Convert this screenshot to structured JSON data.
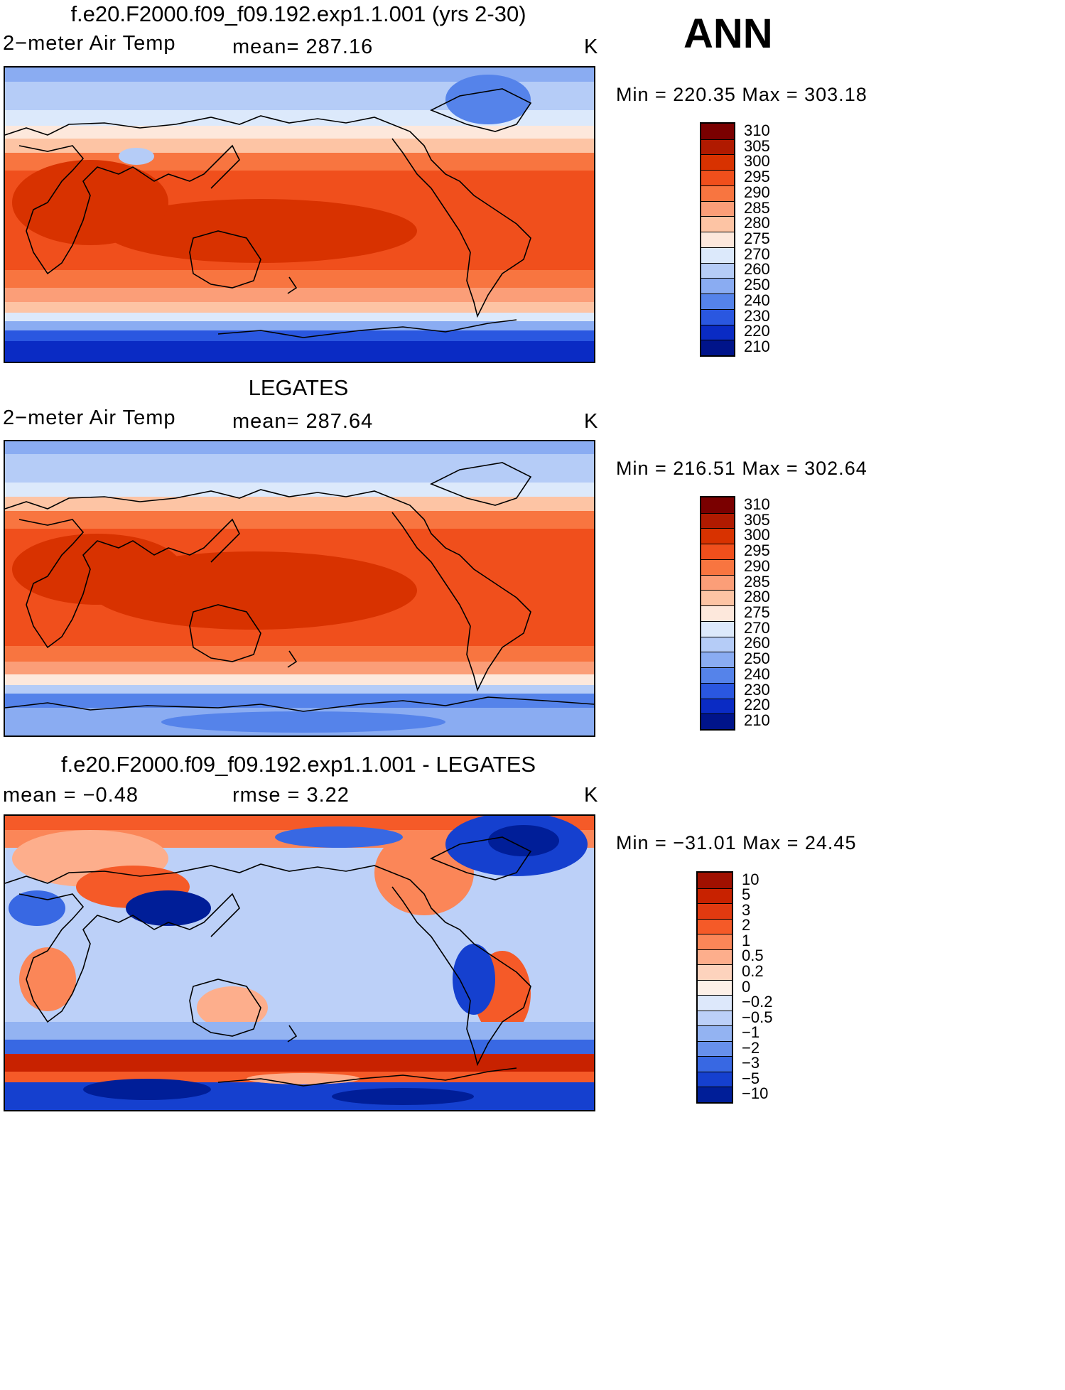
{
  "season": "ANN",
  "panels": [
    {
      "title": "f.e20.F2000.f09_f09.192.exp1.1.001 (yrs 2-30)",
      "left_label": "2−meter Air Temp",
      "center_label": "mean=  287.16",
      "units": "K",
      "minmax": "Min  =  220.35  Max  =  303.18",
      "colorbar": {
        "labels": [
          "310",
          "305",
          "300",
          "295",
          "290",
          "285",
          "280",
          "275",
          "270",
          "260",
          "250",
          "240",
          "230",
          "220",
          "210"
        ],
        "colors": [
          "#7a0000",
          "#b01a00",
          "#d83200",
          "#f04f1c",
          "#f87540",
          "#fb9e78",
          "#fdc4a4",
          "#fde8dc",
          "#dce9fb",
          "#b5ccf7",
          "#8aacf2",
          "#5583ea",
          "#2a57e0",
          "#0a2bc4",
          "#00148a"
        ]
      }
    },
    {
      "title": "LEGATES",
      "left_label": "2−meter Air Temp",
      "center_label": "mean=  287.64",
      "units": "K",
      "minmax": "Min  =  216.51  Max  =  302.64",
      "colorbar": {
        "labels": [
          "310",
          "305",
          "300",
          "295",
          "290",
          "285",
          "280",
          "275",
          "270",
          "260",
          "250",
          "240",
          "230",
          "220",
          "210"
        ],
        "colors": [
          "#7a0000",
          "#b01a00",
          "#d83200",
          "#f04f1c",
          "#f87540",
          "#fb9e78",
          "#fdc4a4",
          "#fde8dc",
          "#dce9fb",
          "#b5ccf7",
          "#8aacf2",
          "#5583ea",
          "#2a57e0",
          "#0a2bc4",
          "#00148a"
        ]
      }
    },
    {
      "title": "f.e20.F2000.f09_f09.192.exp1.1.001 - LEGATES",
      "left_label": "mean  =    −0.48",
      "center_label": "rmse  =     3.22",
      "units": "K",
      "minmax": "Min  =  −31.01  Max  =    24.45",
      "colorbar": {
        "labels": [
          "10",
          "5",
          "3",
          "2",
          "1",
          "0.5",
          "0.2",
          "0",
          "−0.2",
          "−0.5",
          "−1",
          "−2",
          "−3",
          "−5",
          "−10"
        ],
        "colors": [
          "#a01000",
          "#c82200",
          "#e23a10",
          "#f55a28",
          "#fb8658",
          "#fdae8c",
          "#fdd3bd",
          "#fdf0e8",
          "#dde8fb",
          "#bcd0f8",
          "#93b3f2",
          "#6790ec",
          "#3868e3",
          "#1540cf",
          "#001e98"
        ]
      }
    }
  ]
}
